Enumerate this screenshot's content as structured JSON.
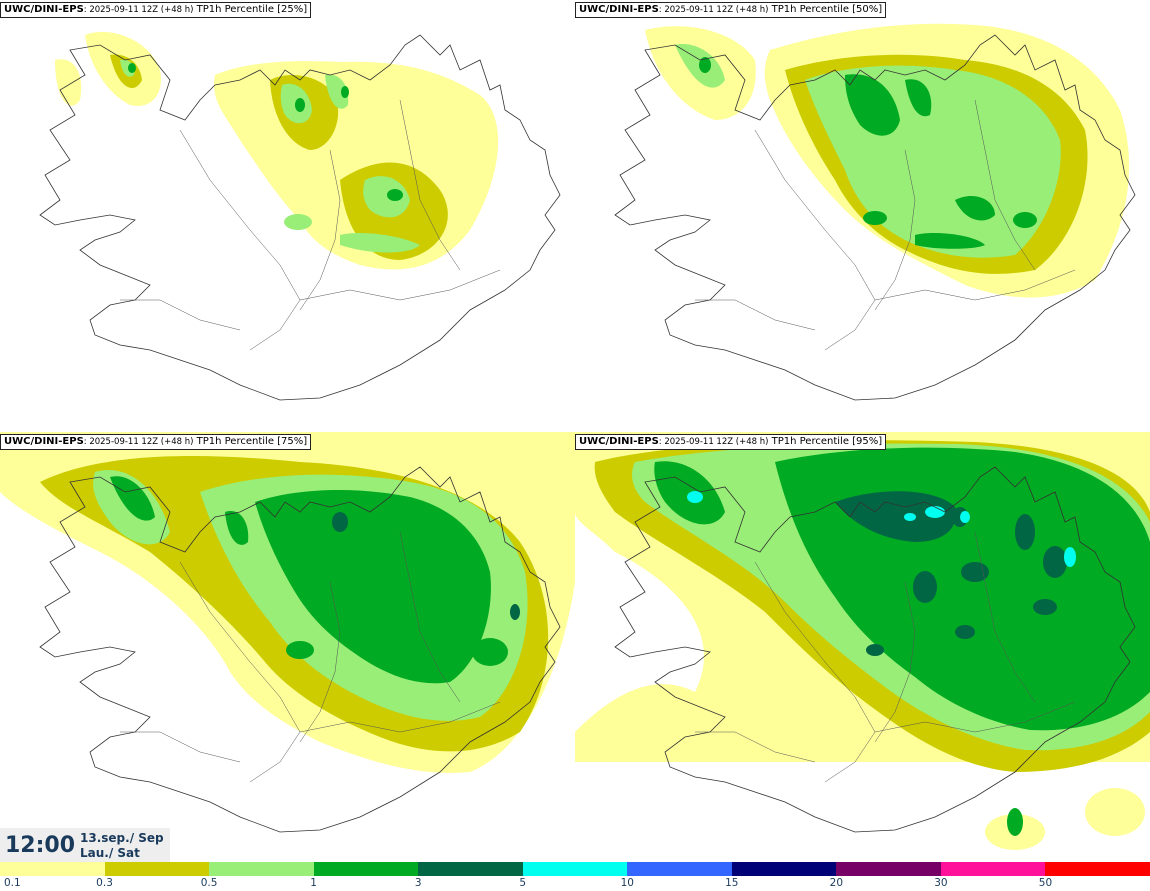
{
  "panels": [
    {
      "model": "UWC/DINI-EPS",
      "run": ": 2025-09-11 12Z (+48 h)",
      "field": " TP1h Percentile [25%]"
    },
    {
      "model": "UWC/DINI-EPS",
      "run": ": 2025-09-11 12Z (+48 h)",
      "field": " TP1h Percentile [50%]"
    },
    {
      "model": "UWC/DINI-EPS",
      "run": ": 2025-09-11 12Z (+48 h)",
      "field": " TP1h Percentile [75%]"
    },
    {
      "model": "UWC/DINI-EPS",
      "run": ": 2025-09-11 12Z (+48 h)",
      "field": " TP1h Percentile [95%]"
    }
  ],
  "valid": {
    "time": "12:00",
    "date_line1": "13.sep./ Sep",
    "date_line2": "Lau./ Sat"
  },
  "colorbar": {
    "colors": [
      "#ffff99",
      "#cccc00",
      "#99ee77",
      "#00aa22",
      "#006644",
      "#00ffee",
      "#3366ff",
      "#000077",
      "#770066",
      "#ff1199",
      "#ff0000"
    ],
    "labels": [
      "0.1",
      "0.3",
      "0.5",
      "1",
      "3",
      "5",
      "10",
      "15",
      "20",
      "30",
      "50"
    ]
  },
  "palette": {
    "coast": "#333333",
    "rivers": "#555555"
  }
}
